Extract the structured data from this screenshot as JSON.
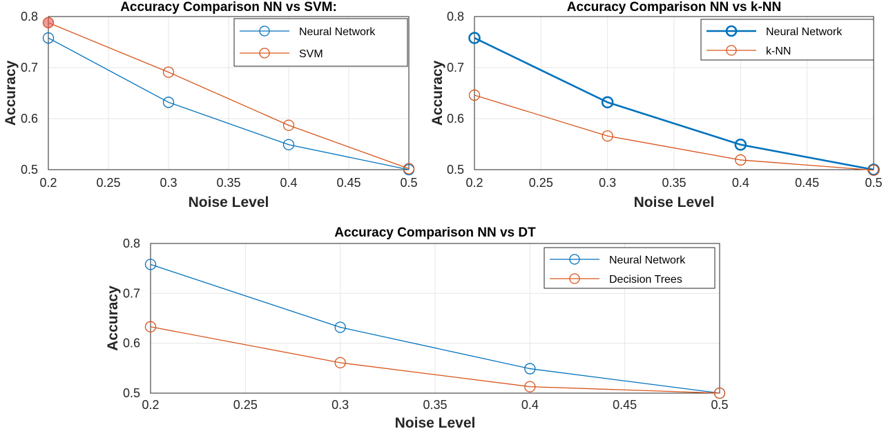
{
  "chart_data": [
    {
      "type": "line",
      "title": "Accuracy Comparison NN vs SVM:",
      "xlabel": "Noise Level",
      "ylabel": "Accuracy",
      "x": [
        0.2,
        0.3,
        0.4,
        0.5
      ],
      "xlim": [
        0.2,
        0.5
      ],
      "ylim": [
        0.5,
        0.8
      ],
      "xticks": [
        "0.2",
        "0.25",
        "0.3",
        "0.35",
        "0.4",
        "0.45",
        "0.5"
      ],
      "yticks": [
        "0.5",
        "0.6",
        "0.7",
        "0.8"
      ],
      "grid": true,
      "legend": "top-right",
      "series": [
        {
          "name": "Neural Network",
          "values": [
            0.758,
            0.632,
            0.549,
            0.5
          ],
          "color": "#0072BD",
          "marker": "circle"
        },
        {
          "name": "SVM",
          "values": [
            0.788,
            0.691,
            0.587,
            0.502
          ],
          "color": "#D95319",
          "marker": "circle"
        }
      ]
    },
    {
      "type": "line",
      "title": "Accuracy Comparison NN vs k-NN",
      "xlabel": "Noise Level",
      "ylabel": "Accuracy",
      "x": [
        0.2,
        0.3,
        0.4,
        0.5
      ],
      "xlim": [
        0.2,
        0.5
      ],
      "ylim": [
        0.5,
        0.8
      ],
      "xticks": [
        "0.2",
        "0.25",
        "0.3",
        "0.35",
        "0.4",
        "0.45",
        "0.5"
      ],
      "yticks": [
        "0.5",
        "0.6",
        "0.7",
        "0.8"
      ],
      "grid": true,
      "legend": "top-right",
      "series": [
        {
          "name": "Neural Network",
          "values": [
            0.758,
            0.632,
            0.549,
            0.5
          ],
          "color": "#0072BD",
          "marker": "circle",
          "bold": true
        },
        {
          "name": "k-NN",
          "values": [
            0.646,
            0.566,
            0.519,
            0.499
          ],
          "color": "#D95319",
          "marker": "circle"
        }
      ]
    },
    {
      "type": "line",
      "title": "Accuracy Comparison NN vs DT",
      "xlabel": "Noise Level",
      "ylabel": "Accuracy",
      "x": [
        0.2,
        0.3,
        0.4,
        0.5
      ],
      "xlim": [
        0.2,
        0.5
      ],
      "ylim": [
        0.5,
        0.8
      ],
      "xticks": [
        "0.2",
        "0.25",
        "0.3",
        "0.35",
        "0.4",
        "0.45",
        "0.5"
      ],
      "yticks": [
        "0.5",
        "0.6",
        "0.7",
        "0.8"
      ],
      "grid": true,
      "legend": "top-right",
      "series": [
        {
          "name": "Neural Network",
          "values": [
            0.758,
            0.632,
            0.549,
            0.5
          ],
          "color": "#0072BD",
          "marker": "circle"
        },
        {
          "name": "Decision Trees",
          "values": [
            0.633,
            0.561,
            0.513,
            0.5
          ],
          "color": "#D95319",
          "marker": "circle"
        }
      ]
    }
  ]
}
